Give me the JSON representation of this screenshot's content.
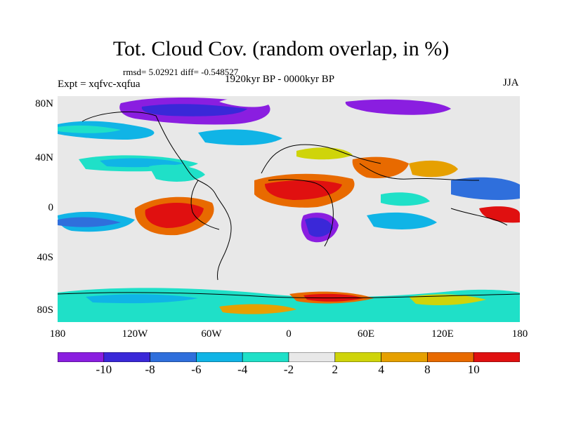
{
  "title": "Tot. Cloud Cov. (random overlap, in %)",
  "stats": "rmsd= 5.02921 diff= -0.548527",
  "experiment": "Expt = xqfvc-xqfua",
  "period": "1920kyr BP - 0000kyr BP",
  "season": "JJA",
  "lat_ticks": [
    "80N",
    "40N",
    "0",
    "40S",
    "80S"
  ],
  "lon_ticks": [
    "180",
    "120W",
    "60W",
    "0",
    "60E",
    "120E",
    "180"
  ],
  "colorbar": {
    "levels": [
      "-10",
      "-8",
      "-6",
      "-4",
      "-2",
      "2",
      "4",
      "8",
      "10"
    ],
    "colors": [
      "#8a1ee0",
      "#3a28d8",
      "#2f6fdc",
      "#10b4e6",
      "#1fe0c8",
      "#e8e8e8",
      "#cfd40a",
      "#e6a000",
      "#e86a00",
      "#e01010"
    ]
  }
}
